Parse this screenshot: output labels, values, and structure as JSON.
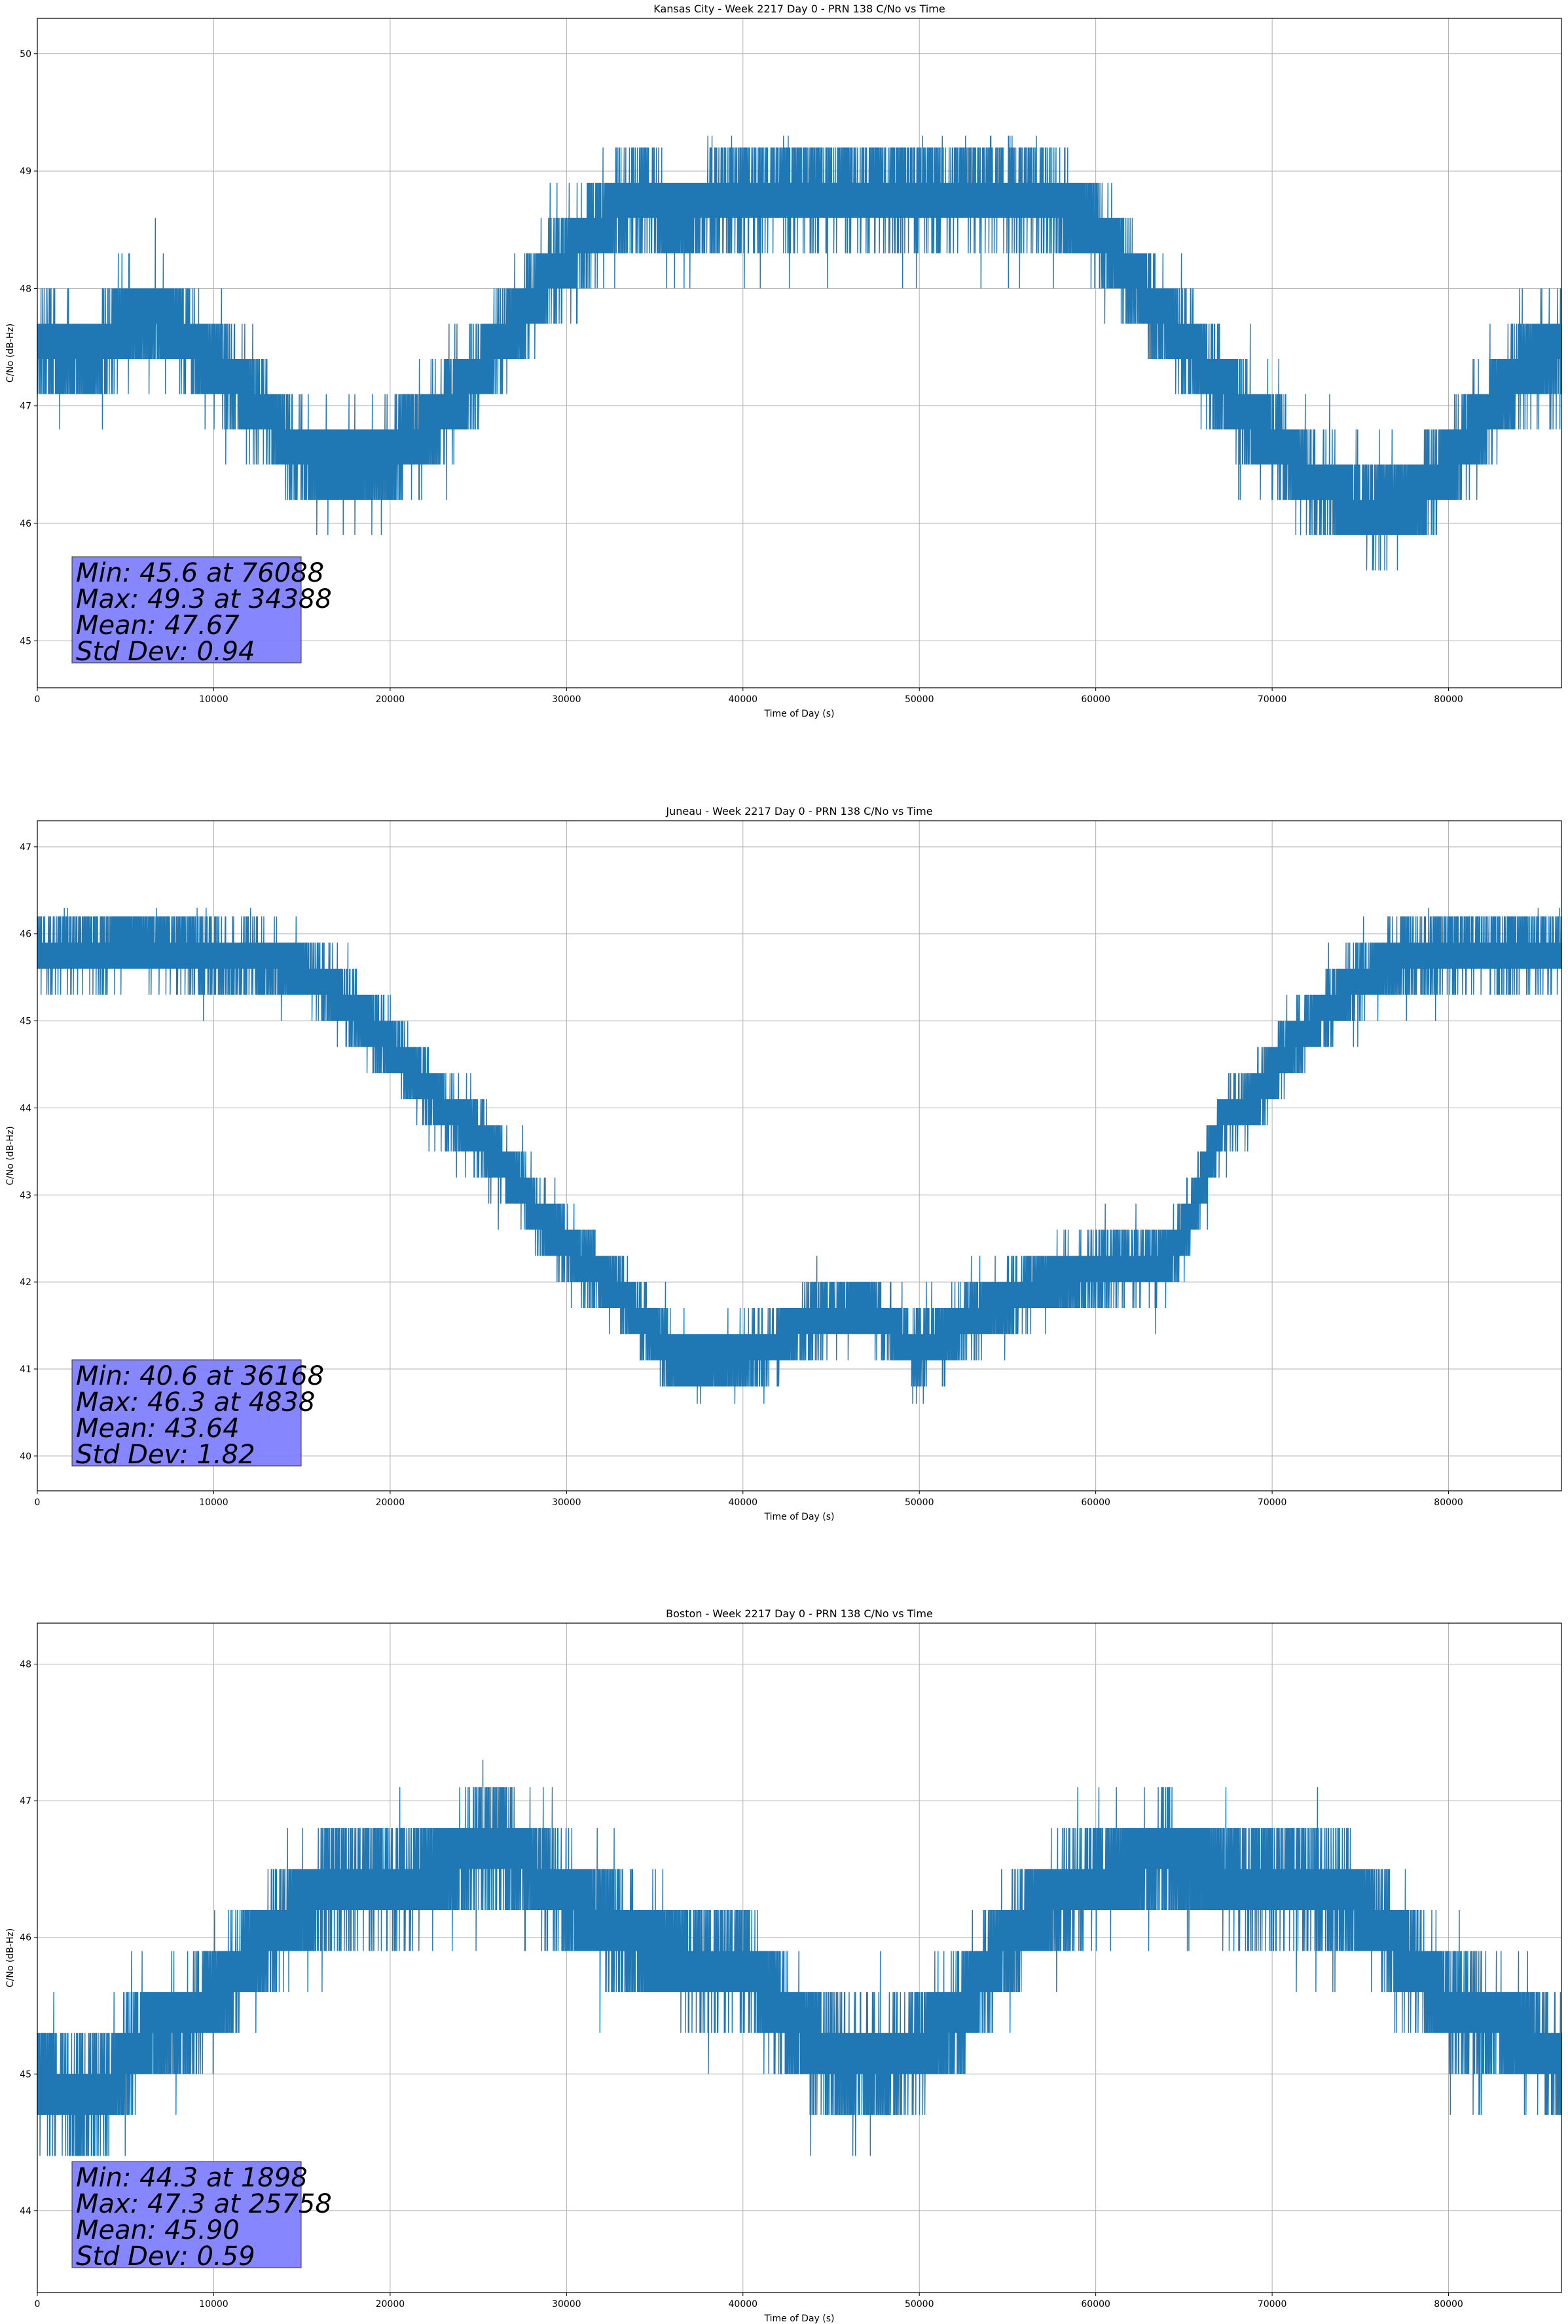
{
  "colors": {
    "series": "#1f77b4",
    "grid": "#b0b0b0",
    "stats_box": "#8080ff",
    "axes": "#000000"
  },
  "chart_data": [
    {
      "type": "line",
      "title": "Kansas City - Week 2217 Day 0 - PRN 138 C/No vs Time",
      "xlabel": "Time of Day (s)",
      "ylabel": "C/No (dB-Hz)",
      "xlim": [
        0,
        86400
      ],
      "ylim": [
        44.6,
        50.3
      ],
      "xticks": [
        0,
        10000,
        20000,
        30000,
        40000,
        50000,
        60000,
        70000,
        80000
      ],
      "yticks": [
        45,
        46,
        47,
        48,
        49,
        50
      ],
      "grid": true,
      "series": [
        {
          "x": [
            0,
            3000,
            5000,
            6700,
            9000,
            11000,
            12600,
            14000,
            16000,
            18000,
            20000,
            22000,
            24000,
            25500,
            27000,
            29000,
            31000,
            33000,
            34388,
            36000,
            38000,
            40000,
            44000,
            48000,
            52000,
            56000,
            58000,
            60000,
            62000,
            64000,
            66000,
            68000,
            70000,
            72000,
            74000,
            76088,
            78000,
            80000,
            82000,
            84000,
            86400
          ],
          "values": [
            47.5,
            47.4,
            47.7,
            47.8,
            47.5,
            47.2,
            47.0,
            46.7,
            46.5,
            46.5,
            46.6,
            46.8,
            47.1,
            47.4,
            47.7,
            48.1,
            48.4,
            48.7,
            48.8,
            48.6,
            48.7,
            48.8,
            48.8,
            48.8,
            48.8,
            48.8,
            48.7,
            48.5,
            48.1,
            47.7,
            47.4,
            47.0,
            46.7,
            46.4,
            46.2,
            46.1,
            46.2,
            46.5,
            46.9,
            47.3,
            47.5
          ],
          "min": 45.6,
          "max": 49.3
        }
      ],
      "stats": [
        "Min: 45.6 at 76088",
        "Max: 49.3 at 34388",
        "Mean: 47.67",
        "Std Dev: 0.94"
      ]
    },
    {
      "type": "line",
      "title": "Juneau - Week 2217 Day 0 - PRN 138 C/No vs Time",
      "xlabel": "Time of Day (s)",
      "ylabel": "C/No (dB-Hz)",
      "xlim": [
        0,
        86400
      ],
      "ylim": [
        39.6,
        47.3
      ],
      "xticks": [
        0,
        10000,
        20000,
        30000,
        40000,
        50000,
        60000,
        70000,
        80000
      ],
      "yticks": [
        40,
        41,
        42,
        43,
        44,
        45,
        46,
        47
      ],
      "grid": true,
      "series": [
        {
          "x": [
            0,
            4000,
            4838,
            8000,
            11000,
            13000,
            15000,
            17000,
            19000,
            21000,
            23000,
            25000,
            27000,
            29000,
            31000,
            33000,
            35000,
            36168,
            38000,
            41000,
            44000,
            47000,
            50000,
            53000,
            56000,
            59000,
            62000,
            64000,
            65500,
            67000,
            69000,
            71000,
            73000,
            75000,
            77000,
            80000,
            83000,
            86400
          ],
          "values": [
            45.8,
            45.8,
            45.9,
            45.8,
            45.7,
            45.7,
            45.6,
            45.3,
            44.9,
            44.5,
            44.0,
            43.7,
            43.2,
            42.6,
            42.2,
            41.9,
            41.4,
            41.1,
            41.1,
            41.2,
            41.6,
            41.7,
            41.2,
            41.6,
            41.9,
            42.1,
            42.2,
            42.2,
            42.8,
            43.8,
            44.1,
            44.7,
            45.1,
            45.5,
            45.7,
            45.8,
            45.8,
            45.8
          ],
          "min": 40.6,
          "max": 46.3
        }
      ],
      "stats": [
        "Min: 40.6 at 36168",
        "Max: 46.3 at 4838",
        "Mean: 43.64",
        "Std Dev: 1.82"
      ]
    },
    {
      "type": "line",
      "title": "Boston - Week 2217 Day 0 - PRN 138 C/No vs Time",
      "xlabel": "Time of Day (s)",
      "ylabel": "C/No (dB-Hz)",
      "xlim": [
        0,
        86400
      ],
      "ylim": [
        43.4,
        48.3
      ],
      "xticks": [
        0,
        10000,
        20000,
        30000,
        40000,
        50000,
        60000,
        70000,
        80000
      ],
      "yticks": [
        44,
        45,
        46,
        47,
        48
      ],
      "grid": true,
      "series": [
        {
          "x": [
            0,
            1898,
            4000,
            6000,
            9000,
            11000,
            13000,
            15000,
            17000,
            19000,
            21000,
            23000,
            25758,
            28000,
            30000,
            32000,
            35000,
            38000,
            40000,
            42000,
            44000,
            46000,
            48000,
            50000,
            52000,
            54000,
            56000,
            58000,
            60000,
            62000,
            64000,
            66000,
            68000,
            70000,
            72000,
            74000,
            76000,
            78000,
            80000,
            82000,
            84000,
            86400
          ],
          "values": [
            45.0,
            44.8,
            44.9,
            45.3,
            45.4,
            45.7,
            46.0,
            46.2,
            46.4,
            46.4,
            46.4,
            46.5,
            46.7,
            46.5,
            46.3,
            46.1,
            45.9,
            45.8,
            45.8,
            45.5,
            45.2,
            45.1,
            45.1,
            45.2,
            45.4,
            45.8,
            46.1,
            46.3,
            46.4,
            46.5,
            46.6,
            46.5,
            46.4,
            46.4,
            46.4,
            46.3,
            46.1,
            45.8,
            45.5,
            45.4,
            45.3,
            45.1
          ],
          "min": 44.3,
          "max": 47.3
        }
      ],
      "stats": [
        "Min: 44.3 at 1898",
        "Max: 47.3 at 25758",
        "Mean: 45.90",
        "Std Dev: 0.59"
      ]
    }
  ]
}
